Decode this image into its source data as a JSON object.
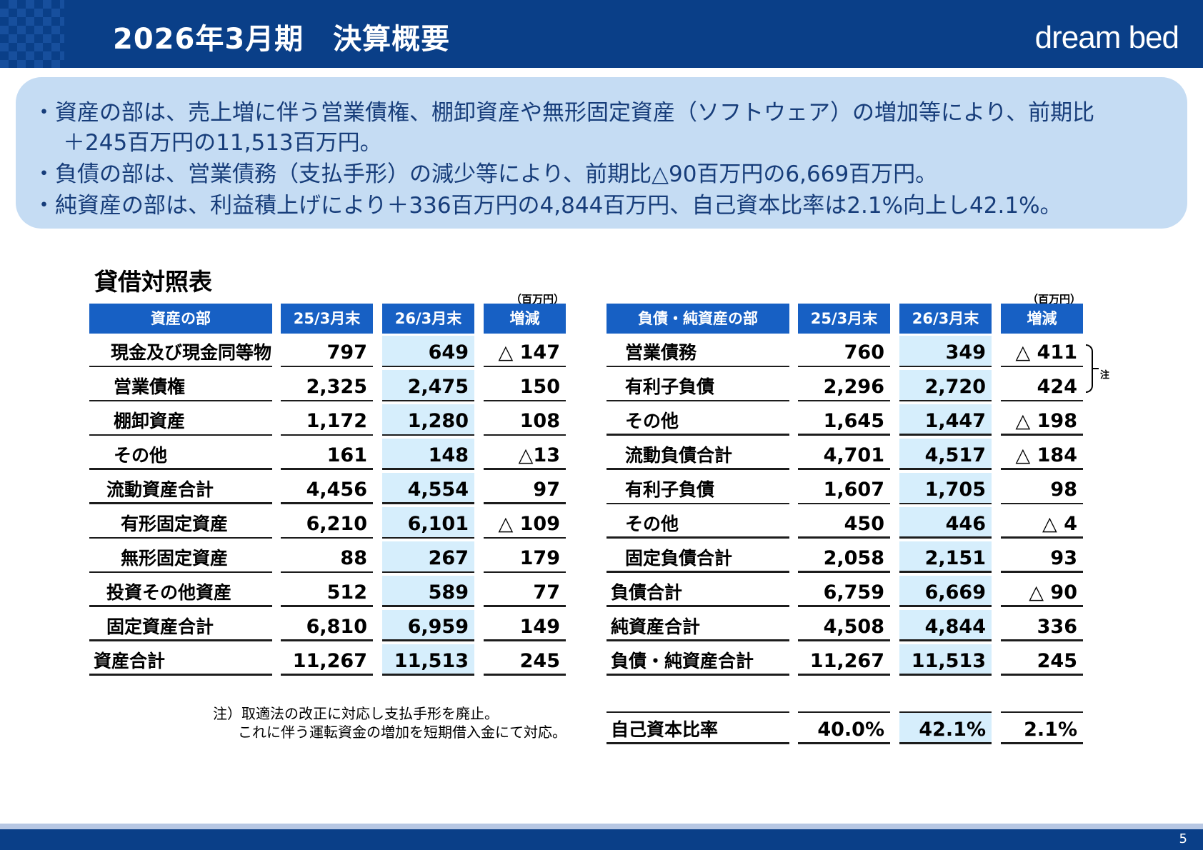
{
  "header": {
    "title": "2026年3月期　決算概要",
    "logo": "dream bed"
  },
  "summary": [
    "・資産の部は、売上増に伴う営業債権、棚卸資産や無形固定資産（ソフトウェア）の増加等により、前期比",
    "＋245百万円の11,513百万円。",
    "・負債の部は、営業債務（支払手形）の減少等により、前期比△90百万円の6,669百万円。",
    "・純資産の部は、利益積上げにより＋336百万円の4,844百万円、自己資本比率は2.1%向上し42.1%。"
  ],
  "section_title": "貸借対照表",
  "unit": "（百万円）",
  "assets": {
    "headers": [
      "資産の部",
      "25/3月末",
      "26/3月末",
      "増減"
    ],
    "rows": [
      {
        "label": "現金及び現金同等物",
        "v25": "797",
        "v26": "649",
        "diff": "△ 147"
      },
      {
        "label": "営業債権",
        "v25": "2,325",
        "v26": "2,475",
        "diff": "150"
      },
      {
        "label": "棚卸資産",
        "v25": "1,172",
        "v26": "1,280",
        "diff": "108"
      },
      {
        "label": "その他",
        "v25": "161",
        "v26": "148",
        "diff": "△13"
      },
      {
        "label": "流動資産合計",
        "v25": "4,456",
        "v26": "4,554",
        "diff": "97"
      },
      {
        "label": "有形固定資産",
        "v25": "6,210",
        "v26": "6,101",
        "diff": "△ 109"
      },
      {
        "label": "無形固定資産",
        "v25": "88",
        "v26": "267",
        "diff": "179"
      },
      {
        "label": "投資その他資産",
        "v25": "512",
        "v26": "589",
        "diff": "77"
      },
      {
        "label": "固定資産合計",
        "v25": "6,810",
        "v26": "6,959",
        "diff": "149"
      },
      {
        "label": "資産合計",
        "v25": "11,267",
        "v26": "11,513",
        "diff": "245"
      }
    ]
  },
  "liabilities": {
    "headers": [
      "負債・純資産の部",
      "25/3月末",
      "26/3月末",
      "増減"
    ],
    "rows": [
      {
        "label": "営業債務",
        "v25": "760",
        "v26": "349",
        "diff": "△ 411"
      },
      {
        "label": "有利子負債",
        "v25": "2,296",
        "v26": "2,720",
        "diff": "424"
      },
      {
        "label": "その他",
        "v25": "1,645",
        "v26": "1,447",
        "diff": "△ 198"
      },
      {
        "label": "流動負債合計",
        "v25": "4,701",
        "v26": "4,517",
        "diff": "△ 184"
      },
      {
        "label": "有利子負債",
        "v25": "1,607",
        "v26": "1,705",
        "diff": "98"
      },
      {
        "label": "その他",
        "v25": "450",
        "v26": "446",
        "diff": "△ 4"
      },
      {
        "label": "固定負債合計",
        "v25": "2,058",
        "v26": "2,151",
        "diff": "93"
      },
      {
        "label": "負債合計",
        "v25": "6,759",
        "v26": "6,669",
        "diff": "△ 90"
      },
      {
        "label": "純資産合計",
        "v25": "4,508",
        "v26": "4,844",
        "diff": "336"
      },
      {
        "label": "負債・純資産合計",
        "v25": "11,267",
        "v26": "11,513",
        "diff": "245"
      }
    ],
    "ratio": {
      "label": "自己資本比率",
      "v25": "40.0%",
      "v26": "42.1%",
      "diff": "2.1%"
    }
  },
  "brace_note": "注",
  "footnote": [
    "注）取適法の改正に対応し支払手形を廃止。",
    "これに伴う運転資金の増加を短期借入金にて対応。"
  ],
  "page_number": "5",
  "colors": {
    "header_bg": "#0a3f88",
    "summary_bg": "#c5dcf3",
    "table_header": "#1760c4",
    "highlight": "#d6eefc"
  }
}
